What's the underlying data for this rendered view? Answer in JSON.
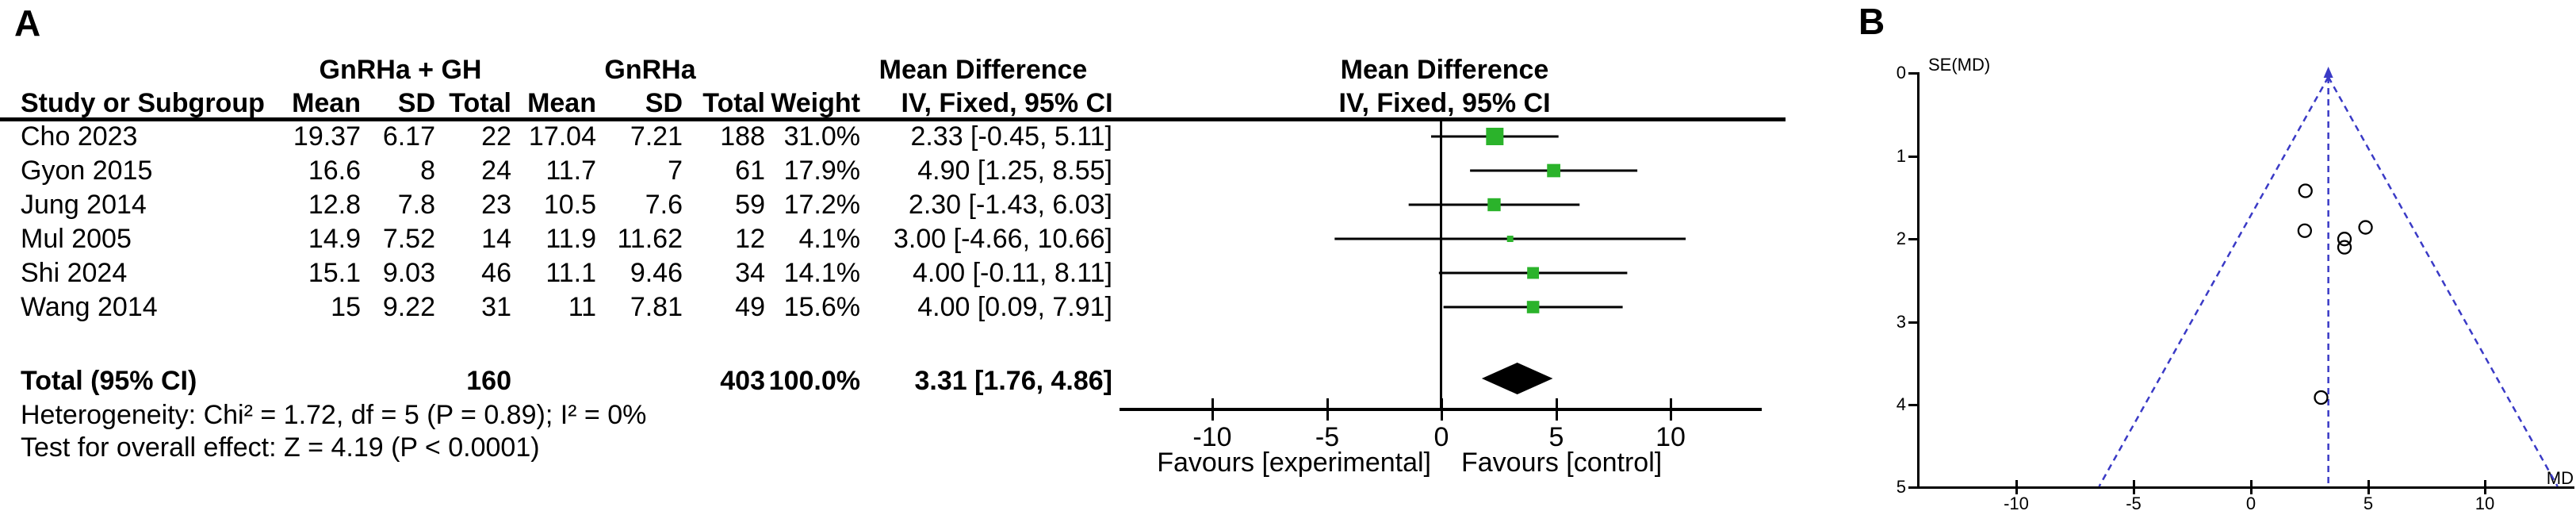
{
  "panel_a": {
    "label": "A",
    "table": {
      "group1_header": "GnRHa + GH",
      "group2_header": "GnRHa",
      "md_header": "Mean Difference",
      "col_headers": {
        "study": "Study or Subgroup",
        "mean": "Mean",
        "sd": "SD",
        "total": "Total",
        "weight": "Weight",
        "ci": "IV, Fixed, 95% CI"
      },
      "rows": [
        {
          "study": "Cho 2023",
          "mean1": "19.37",
          "sd1": "6.17",
          "total1": "22",
          "mean2": "17.04",
          "sd2": "7.21",
          "total2": "188",
          "weight": "31.0%",
          "ci_text": "2.33 [-0.45, 5.11]"
        },
        {
          "study": "Gyon 2015",
          "mean1": "16.6",
          "sd1": "8",
          "total1": "24",
          "mean2": "11.7",
          "sd2": "7",
          "total2": "61",
          "weight": "17.9%",
          "ci_text": "4.90 [1.25, 8.55]"
        },
        {
          "study": "Jung 2014",
          "mean1": "12.8",
          "sd1": "7.8",
          "total1": "23",
          "mean2": "10.5",
          "sd2": "7.6",
          "total2": "59",
          "weight": "17.2%",
          "ci_text": "2.30 [-1.43, 6.03]"
        },
        {
          "study": "Mul 2005",
          "mean1": "14.9",
          "sd1": "7.52",
          "total1": "14",
          "mean2": "11.9",
          "sd2": "11.62",
          "total2": "12",
          "weight": "4.1%",
          "ci_text": "3.00 [-4.66, 10.66]"
        },
        {
          "study": "Shi 2024",
          "mean1": "15.1",
          "sd1": "9.03",
          "total1": "46",
          "mean2": "11.1",
          "sd2": "9.46",
          "total2": "34",
          "weight": "14.1%",
          "ci_text": "4.00 [-0.11, 8.11]"
        },
        {
          "study": "Wang 2014",
          "mean1": "15",
          "sd1": "9.22",
          "total1": "31",
          "mean2": "11",
          "sd2": "7.81",
          "total2": "49",
          "weight": "15.6%",
          "ci_text": "4.00 [0.09, 7.91]"
        }
      ],
      "total_row": {
        "label": "Total (95% CI)",
        "total1": "160",
        "total2": "403",
        "weight": "100.0%",
        "ci_text": "3.31 [1.76, 4.86]"
      },
      "heterogeneity": "Heterogeneity: Chi² = 1.72, df = 5 (P = 0.89); I² = 0%",
      "overall_effect": "Test for overall effect: Z = 4.19 (P < 0.0001)"
    },
    "plot": {
      "header_line1": "Mean Difference",
      "header_line2": "IV, Fixed, 95% CI",
      "ticks": [
        "-10",
        "-5",
        "0",
        "5",
        "10"
      ],
      "favours_left": "Favours [experimental]",
      "favours_right": "Favours [control]",
      "square_color": "#2bb32b"
    }
  },
  "panel_b": {
    "label": "B",
    "y_axis_label": "SE(MD)",
    "x_axis_label": "MD",
    "y_ticks": [
      "0",
      "1",
      "2",
      "3",
      "4",
      "5"
    ],
    "x_ticks": [
      "-10",
      "-5",
      "0",
      "5",
      "10"
    ],
    "line_color": "#3a3ac6"
  },
  "chart_data": [
    {
      "type": "forest",
      "title": "Mean Difference IV, Fixed, 95% CI",
      "effect_measure": "Mean Difference",
      "model": "IV, Fixed, 95% CI",
      "x_ticks": [
        -10,
        -5,
        0,
        5,
        10
      ],
      "studies": [
        {
          "study": "Cho 2023",
          "md": 2.33,
          "lo": -0.45,
          "hi": 5.11,
          "weight_pct": 31.0
        },
        {
          "study": "Gyon 2015",
          "md": 4.9,
          "lo": 1.25,
          "hi": 8.55,
          "weight_pct": 17.9
        },
        {
          "study": "Jung 2014",
          "md": 2.3,
          "lo": -1.43,
          "hi": 6.03,
          "weight_pct": 17.2
        },
        {
          "study": "Mul 2005",
          "md": 3.0,
          "lo": -4.66,
          "hi": 10.66,
          "weight_pct": 4.1
        },
        {
          "study": "Shi 2024",
          "md": 4.0,
          "lo": -0.11,
          "hi": 8.11,
          "weight_pct": 14.1
        },
        {
          "study": "Wang 2014",
          "md": 4.0,
          "lo": 0.09,
          "hi": 7.91,
          "weight_pct": 15.6
        }
      ],
      "total": {
        "label": "Total (95% CI)",
        "md": 3.31,
        "lo": 1.76,
        "hi": 4.86
      },
      "heterogeneity": {
        "chi2": 1.72,
        "df": 5,
        "p": 0.89,
        "i2_pct": 0
      },
      "overall_effect": {
        "z": 4.19,
        "p": "< 0.0001"
      }
    },
    {
      "type": "scatter",
      "subtype": "funnel",
      "xlabel": "MD",
      "ylabel": "SE(MD)",
      "x_ticks": [
        -10,
        -5,
        0,
        5,
        10
      ],
      "y_ticks": [
        0,
        1,
        2,
        3,
        4,
        5
      ],
      "y_inverted": true,
      "ylim": [
        0,
        5
      ],
      "center_md": 3.31,
      "pseudo_ci_z": 1.96,
      "points": [
        {
          "study": "Cho 2023",
          "md": 2.33,
          "se": 1.42
        },
        {
          "study": "Gyon 2015",
          "md": 4.9,
          "se": 1.86
        },
        {
          "study": "Jung 2014",
          "md": 2.3,
          "se": 1.9
        },
        {
          "study": "Mul 2005",
          "md": 3.0,
          "se": 3.91
        },
        {
          "study": "Shi 2024",
          "md": 4.0,
          "se": 2.1
        },
        {
          "study": "Wang 2014",
          "md": 4.0,
          "se": 2.0
        }
      ]
    }
  ]
}
